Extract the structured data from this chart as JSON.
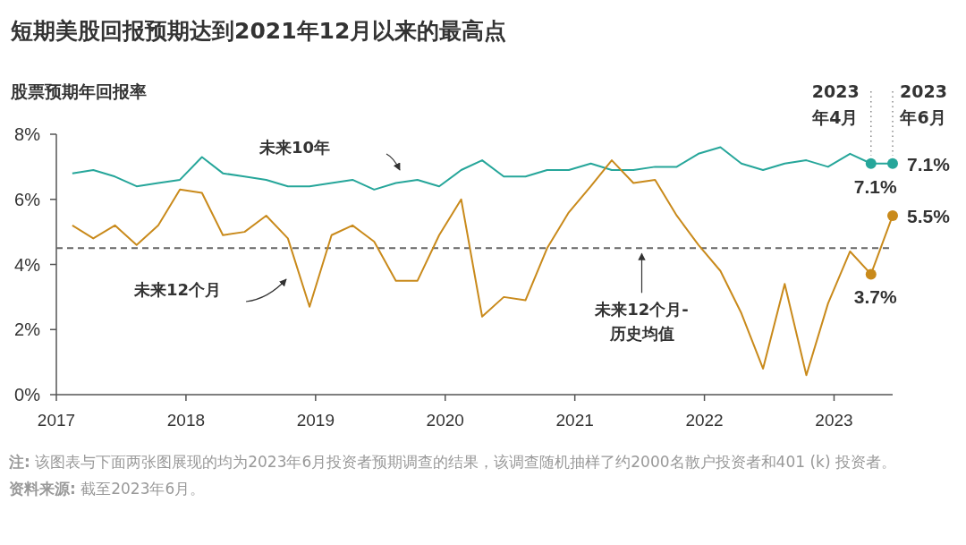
{
  "chart_data": {
    "type": "line",
    "title": "短期美股回报预期达到2021年12月以来的最高点",
    "ylabel": "股票预期年回报率",
    "x": [
      "2017-02-15",
      "2017-04-15",
      "2017-06-15",
      "2017-08-15",
      "2017-10-15",
      "2017-12-15",
      "2018-02-15",
      "2018-04-15",
      "2018-06-15",
      "2018-08-15",
      "2018-10-15",
      "2018-12-15",
      "2019-02-15",
      "2019-04-15",
      "2019-06-15",
      "2019-08-15",
      "2019-10-15",
      "2019-12-15",
      "2020-02-15",
      "2020-04-15",
      "2020-06-15",
      "2020-08-15",
      "2020-10-15",
      "2020-12-15",
      "2021-02-15",
      "2021-04-15",
      "2021-06-15",
      "2021-08-15",
      "2021-10-15",
      "2021-12-15",
      "2022-02-15",
      "2022-04-15",
      "2022-06-15",
      "2022-08-15",
      "2022-10-15",
      "2022-12-15",
      "2023-02-15",
      "2023-04-15",
      "2023-06-15"
    ],
    "series": [
      {
        "name": "未来10年",
        "color": "#26a69a",
        "values": [
          6.8,
          6.9,
          6.7,
          6.4,
          6.5,
          6.6,
          7.3,
          6.8,
          6.7,
          6.6,
          6.4,
          6.4,
          6.5,
          6.6,
          6.3,
          6.5,
          6.6,
          6.4,
          6.9,
          7.2,
          6.7,
          6.7,
          6.9,
          6.9,
          7.1,
          6.9,
          6.9,
          7.0,
          7.0,
          7.4,
          7.6,
          7.1,
          6.9,
          7.1,
          7.2,
          7.0,
          7.4,
          7.1,
          7.1
        ],
        "value_labels": [
          null,
          null,
          null,
          null,
          null,
          null,
          null,
          null,
          null,
          null,
          null,
          null,
          null,
          null,
          null,
          null,
          null,
          null,
          null,
          null,
          null,
          null,
          null,
          null,
          null,
          null,
          null,
          null,
          null,
          null,
          null,
          null,
          null,
          null,
          null,
          null,
          null,
          "7.1%",
          "7.1%"
        ]
      },
      {
        "name": "未来12个月",
        "color": "#c98a1b",
        "values": [
          5.2,
          4.8,
          5.2,
          4.6,
          5.2,
          6.3,
          6.2,
          4.9,
          5.0,
          5.5,
          4.8,
          2.7,
          4.9,
          5.2,
          4.7,
          3.5,
          3.5,
          4.9,
          6.0,
          2.4,
          3.0,
          2.9,
          4.5,
          5.6,
          6.4,
          7.2,
          6.5,
          6.6,
          5.5,
          4.6,
          3.8,
          2.5,
          0.8,
          3.4,
          0.6,
          2.8,
          4.4,
          3.7,
          5.5
        ],
        "value_labels": [
          null,
          null,
          null,
          null,
          null,
          null,
          null,
          null,
          null,
          null,
          null,
          null,
          null,
          null,
          null,
          null,
          null,
          null,
          null,
          null,
          null,
          null,
          null,
          null,
          null,
          null,
          null,
          null,
          null,
          null,
          null,
          null,
          null,
          null,
          null,
          null,
          null,
          "3.7%",
          "5.5%"
        ]
      }
    ],
    "xlim": [
      "2017-01-01",
      "2023-06-15"
    ],
    "xticks": [
      {
        "value": "2017-01-01",
        "label": "2017"
      },
      {
        "value": "2018-01-01",
        "label": "2018"
      },
      {
        "value": "2019-01-01",
        "label": "2019"
      },
      {
        "value": "2020-01-01",
        "label": "2020"
      },
      {
        "value": "2021-01-01",
        "label": "2021"
      },
      {
        "value": "2022-01-01",
        "label": "2022"
      },
      {
        "value": "2023-01-01",
        "label": "2023"
      }
    ],
    "ylim": [
      0,
      8
    ],
    "yticks": [
      {
        "value": 0,
        "label": "0%"
      },
      {
        "value": 2,
        "label": "2%"
      },
      {
        "value": 4,
        "label": "4%"
      },
      {
        "value": 6,
        "label": "6%"
      },
      {
        "value": 8,
        "label": "8%"
      }
    ],
    "ref_lines": [
      {
        "axis": "y",
        "value": 4.5,
        "label": "未来12个月-历史均值",
        "color": "#666666",
        "line_style": "dashed"
      },
      {
        "axis": "x",
        "value": "2023-04-15",
        "label": "2023年4月",
        "color": "#888888",
        "line_style": "dotted"
      },
      {
        "axis": "x",
        "value": "2023-06-15",
        "label": "2023年6月",
        "color": "#888888",
        "line_style": "dotted"
      }
    ],
    "grid": false,
    "legend": false,
    "annotations": [
      "**注:** 该图表与下面两张图展现的均为2023年6月投资者预期调查的结果，该调查随机抽样了约2000名散户投资者和401 (k) 投资者。",
      "**资料来源:** 截至2023年6月。"
    ]
  }
}
